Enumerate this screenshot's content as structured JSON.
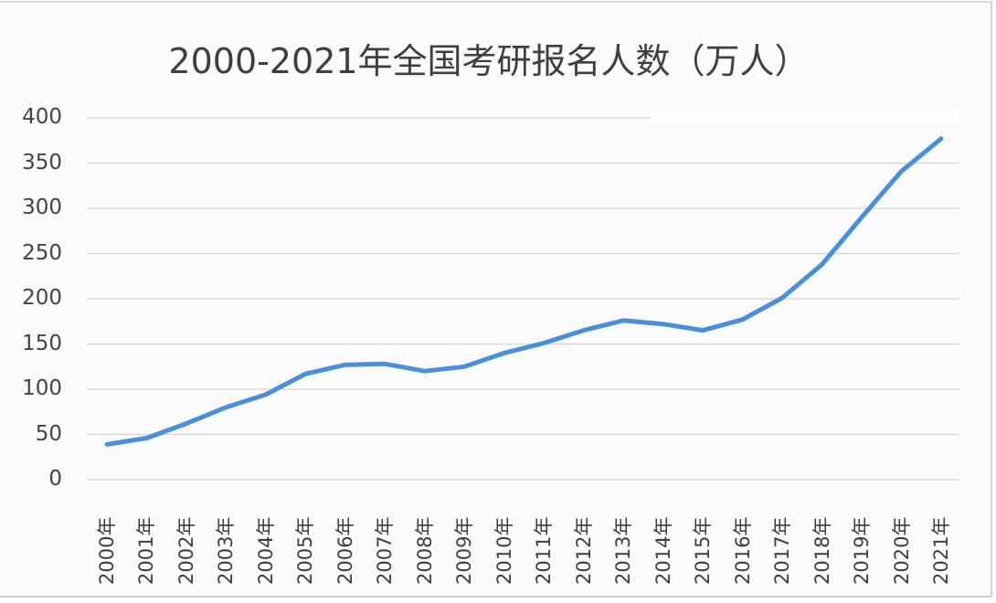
{
  "chart_data": {
    "type": "line",
    "title": "2000-2021年全国考研报名人数（万人）",
    "xlabel": "",
    "ylabel": "",
    "ylim": [
      0,
      400
    ],
    "yticks": [
      0,
      50,
      100,
      150,
      200,
      250,
      300,
      350,
      400
    ],
    "ytick_labels": [
      "0",
      "50",
      "100",
      "150",
      "200",
      "250",
      "300",
      "350",
      "400"
    ],
    "grid": true,
    "legend": null,
    "categories": [
      "2000年",
      "2001年",
      "2002年",
      "2003年",
      "2004年",
      "2005年",
      "2006年",
      "2007年",
      "2008年",
      "2009年",
      "2010年",
      "2011年",
      "2012年",
      "2013年",
      "2014年",
      "2015年",
      "2016年",
      "2017年",
      "2018年",
      "2019年",
      "2020年",
      "2021年"
    ],
    "series": [
      {
        "name": "全国考研报名人数（万人）",
        "color": "#4a8fdb",
        "values": [
          39,
          46,
          62,
          80,
          94,
          117,
          127,
          128,
          120,
          125,
          140,
          151,
          165,
          176,
          172,
          165,
          177,
          201,
          238,
          290,
          341,
          377
        ]
      }
    ]
  },
  "colors": {
    "line": "#4a8fdb",
    "grid": "#d9d3d6",
    "text": "#404040"
  }
}
